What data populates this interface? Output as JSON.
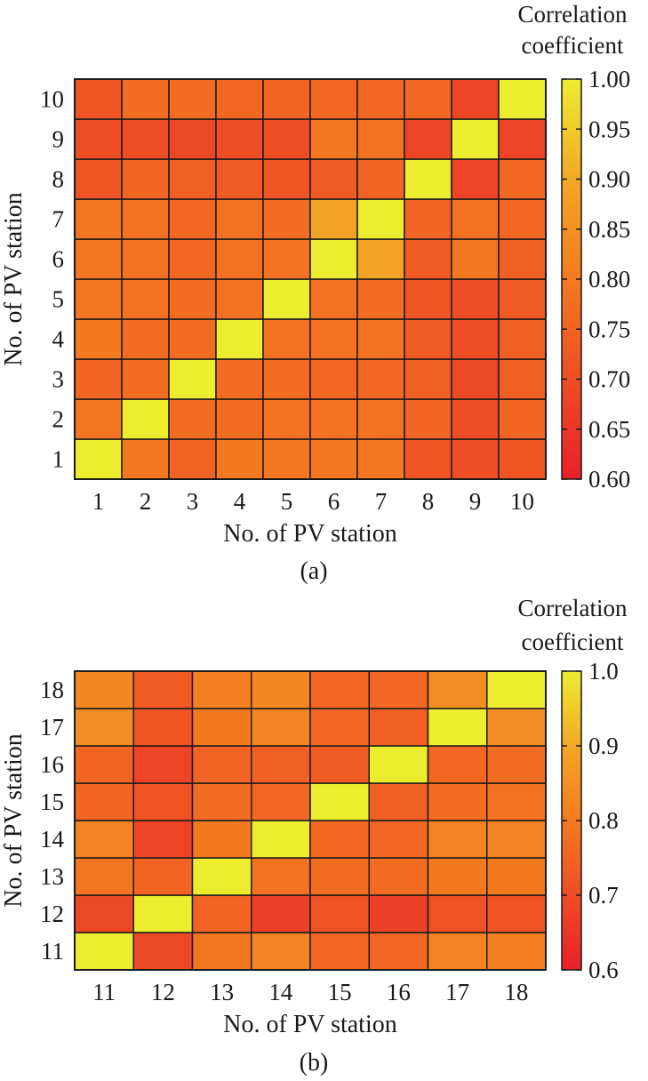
{
  "chart_data": [
    {
      "type": "heatmap",
      "panel_label": "(a)",
      "xlabel": "No. of PV station",
      "ylabel": "No. of PV station",
      "x_categories": [
        "1",
        "2",
        "3",
        "4",
        "5",
        "6",
        "7",
        "8",
        "9",
        "10"
      ],
      "y_categories": [
        "1",
        "2",
        "3",
        "4",
        "5",
        "6",
        "7",
        "8",
        "9",
        "10"
      ],
      "colorbar": {
        "title_lines": [
          "Correlation",
          "coefficient"
        ],
        "range": [
          0.6,
          1.0
        ],
        "tick_labels": [
          "0.60",
          "0.65",
          "0.70",
          "0.75",
          "0.80",
          "0.85",
          "0.90",
          "0.95",
          "1.00"
        ],
        "colormap": "red-orange-yellow"
      },
      "values": [
        [
          1.0,
          0.79,
          0.75,
          0.8,
          0.79,
          0.79,
          0.79,
          0.72,
          0.7,
          0.72
        ],
        [
          0.79,
          1.0,
          0.77,
          0.77,
          0.78,
          0.78,
          0.78,
          0.75,
          0.7,
          0.75
        ],
        [
          0.75,
          0.77,
          1.0,
          0.77,
          0.77,
          0.76,
          0.76,
          0.74,
          0.69,
          0.74
        ],
        [
          0.8,
          0.77,
          0.77,
          1.0,
          0.78,
          0.78,
          0.78,
          0.73,
          0.7,
          0.74
        ],
        [
          0.79,
          0.78,
          0.77,
          0.78,
          1.0,
          0.78,
          0.77,
          0.72,
          0.7,
          0.73
        ],
        [
          0.79,
          0.78,
          0.76,
          0.78,
          0.78,
          1.0,
          0.89,
          0.73,
          0.79,
          0.74
        ],
        [
          0.79,
          0.78,
          0.76,
          0.78,
          0.77,
          0.89,
          1.0,
          0.75,
          0.78,
          0.76
        ],
        [
          0.72,
          0.75,
          0.74,
          0.73,
          0.72,
          0.73,
          0.75,
          1.0,
          0.68,
          0.76
        ],
        [
          0.7,
          0.7,
          0.69,
          0.7,
          0.7,
          0.79,
          0.78,
          0.68,
          1.0,
          0.68
        ],
        [
          0.72,
          0.77,
          0.77,
          0.76,
          0.75,
          0.76,
          0.76,
          0.76,
          0.68,
          1.0
        ]
      ]
    },
    {
      "type": "heatmap",
      "panel_label": "(b)",
      "xlabel": "No. of PV station",
      "ylabel": "No. of PV station",
      "x_categories": [
        "11",
        "12",
        "13",
        "14",
        "15",
        "16",
        "17",
        "18"
      ],
      "y_categories": [
        "11",
        "12",
        "13",
        "14",
        "15",
        "16",
        "17",
        "18"
      ],
      "colorbar": {
        "title_lines": [
          "Correlation",
          "coefficient"
        ],
        "range": [
          0.6,
          1.0
        ],
        "tick_labels": [
          "0.6",
          "0.7",
          "0.8",
          "0.9",
          "1.0"
        ],
        "colormap": "red-orange-yellow"
      },
      "values": [
        [
          1.0,
          0.69,
          0.79,
          0.82,
          0.76,
          0.76,
          0.82,
          0.81
        ],
        [
          0.69,
          1.0,
          0.75,
          0.67,
          0.71,
          0.67,
          0.71,
          0.71
        ],
        [
          0.79,
          0.75,
          1.0,
          0.78,
          0.77,
          0.77,
          0.8,
          0.8
        ],
        [
          0.82,
          0.68,
          0.8,
          1.0,
          0.76,
          0.76,
          0.82,
          0.82
        ],
        [
          0.75,
          0.71,
          0.77,
          0.76,
          1.0,
          0.74,
          0.77,
          0.78
        ],
        [
          0.75,
          0.68,
          0.75,
          0.74,
          0.73,
          1.0,
          0.76,
          0.77
        ],
        [
          0.84,
          0.72,
          0.8,
          0.82,
          0.76,
          0.74,
          1.0,
          0.84
        ],
        [
          0.83,
          0.73,
          0.81,
          0.83,
          0.76,
          0.76,
          0.84,
          1.0
        ]
      ]
    }
  ]
}
